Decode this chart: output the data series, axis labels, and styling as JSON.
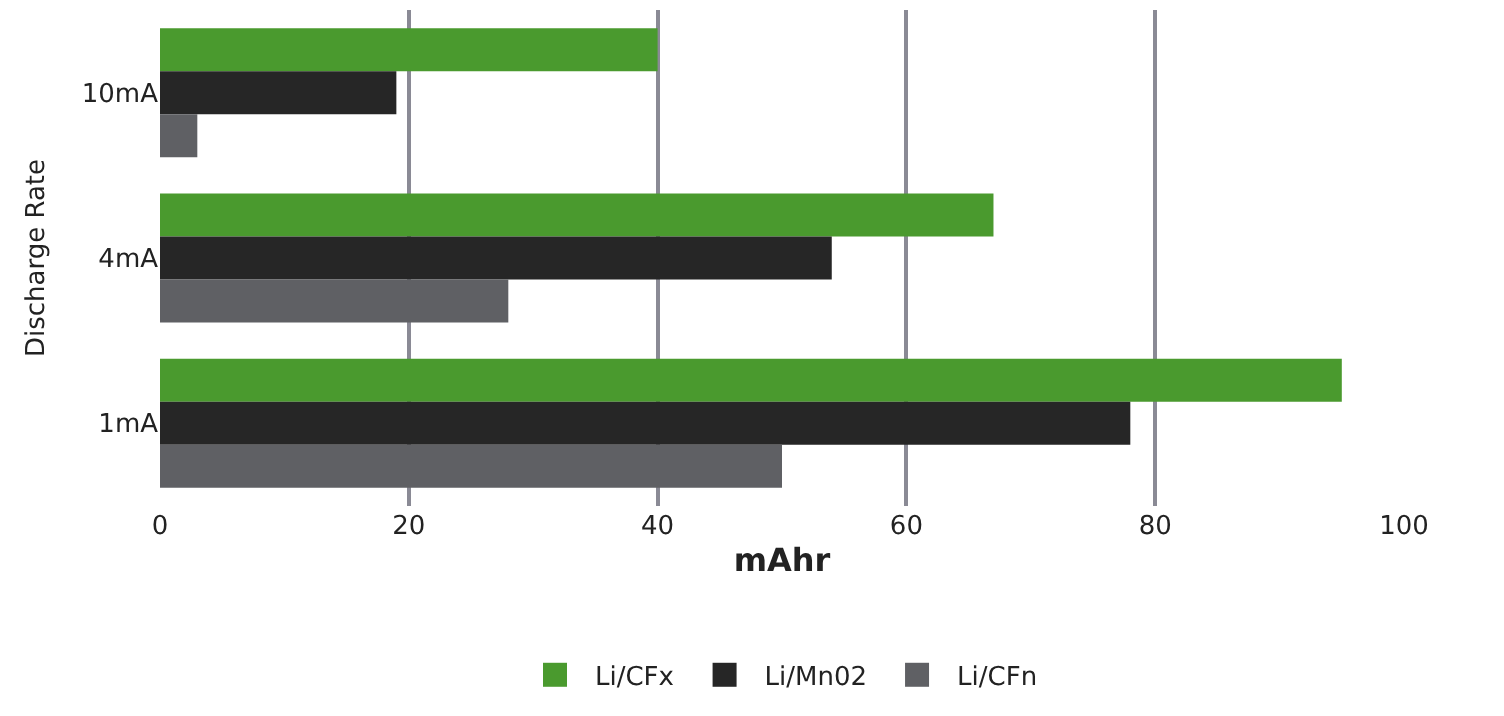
{
  "chart_data": {
    "type": "bar",
    "orientation": "horizontal",
    "xlabel": "mAhr",
    "ylabel": "Discharge Rate",
    "categories": [
      "10mA",
      "4mA",
      "1mA"
    ],
    "series": [
      {
        "name": "Li/CFx",
        "color": "#4a9a2e",
        "values": [
          40,
          67,
          95
        ]
      },
      {
        "name": "Li/Mn02",
        "color": "#262626",
        "values": [
          19,
          54,
          78
        ]
      },
      {
        "name": "Li/CFn",
        "color": "#5f6064",
        "values": [
          3,
          28,
          50
        ]
      }
    ],
    "xlim": [
      0,
      100
    ],
    "xticks": [
      0,
      20,
      40,
      60,
      80,
      100
    ],
    "grid": "x",
    "legend": "bottom"
  }
}
